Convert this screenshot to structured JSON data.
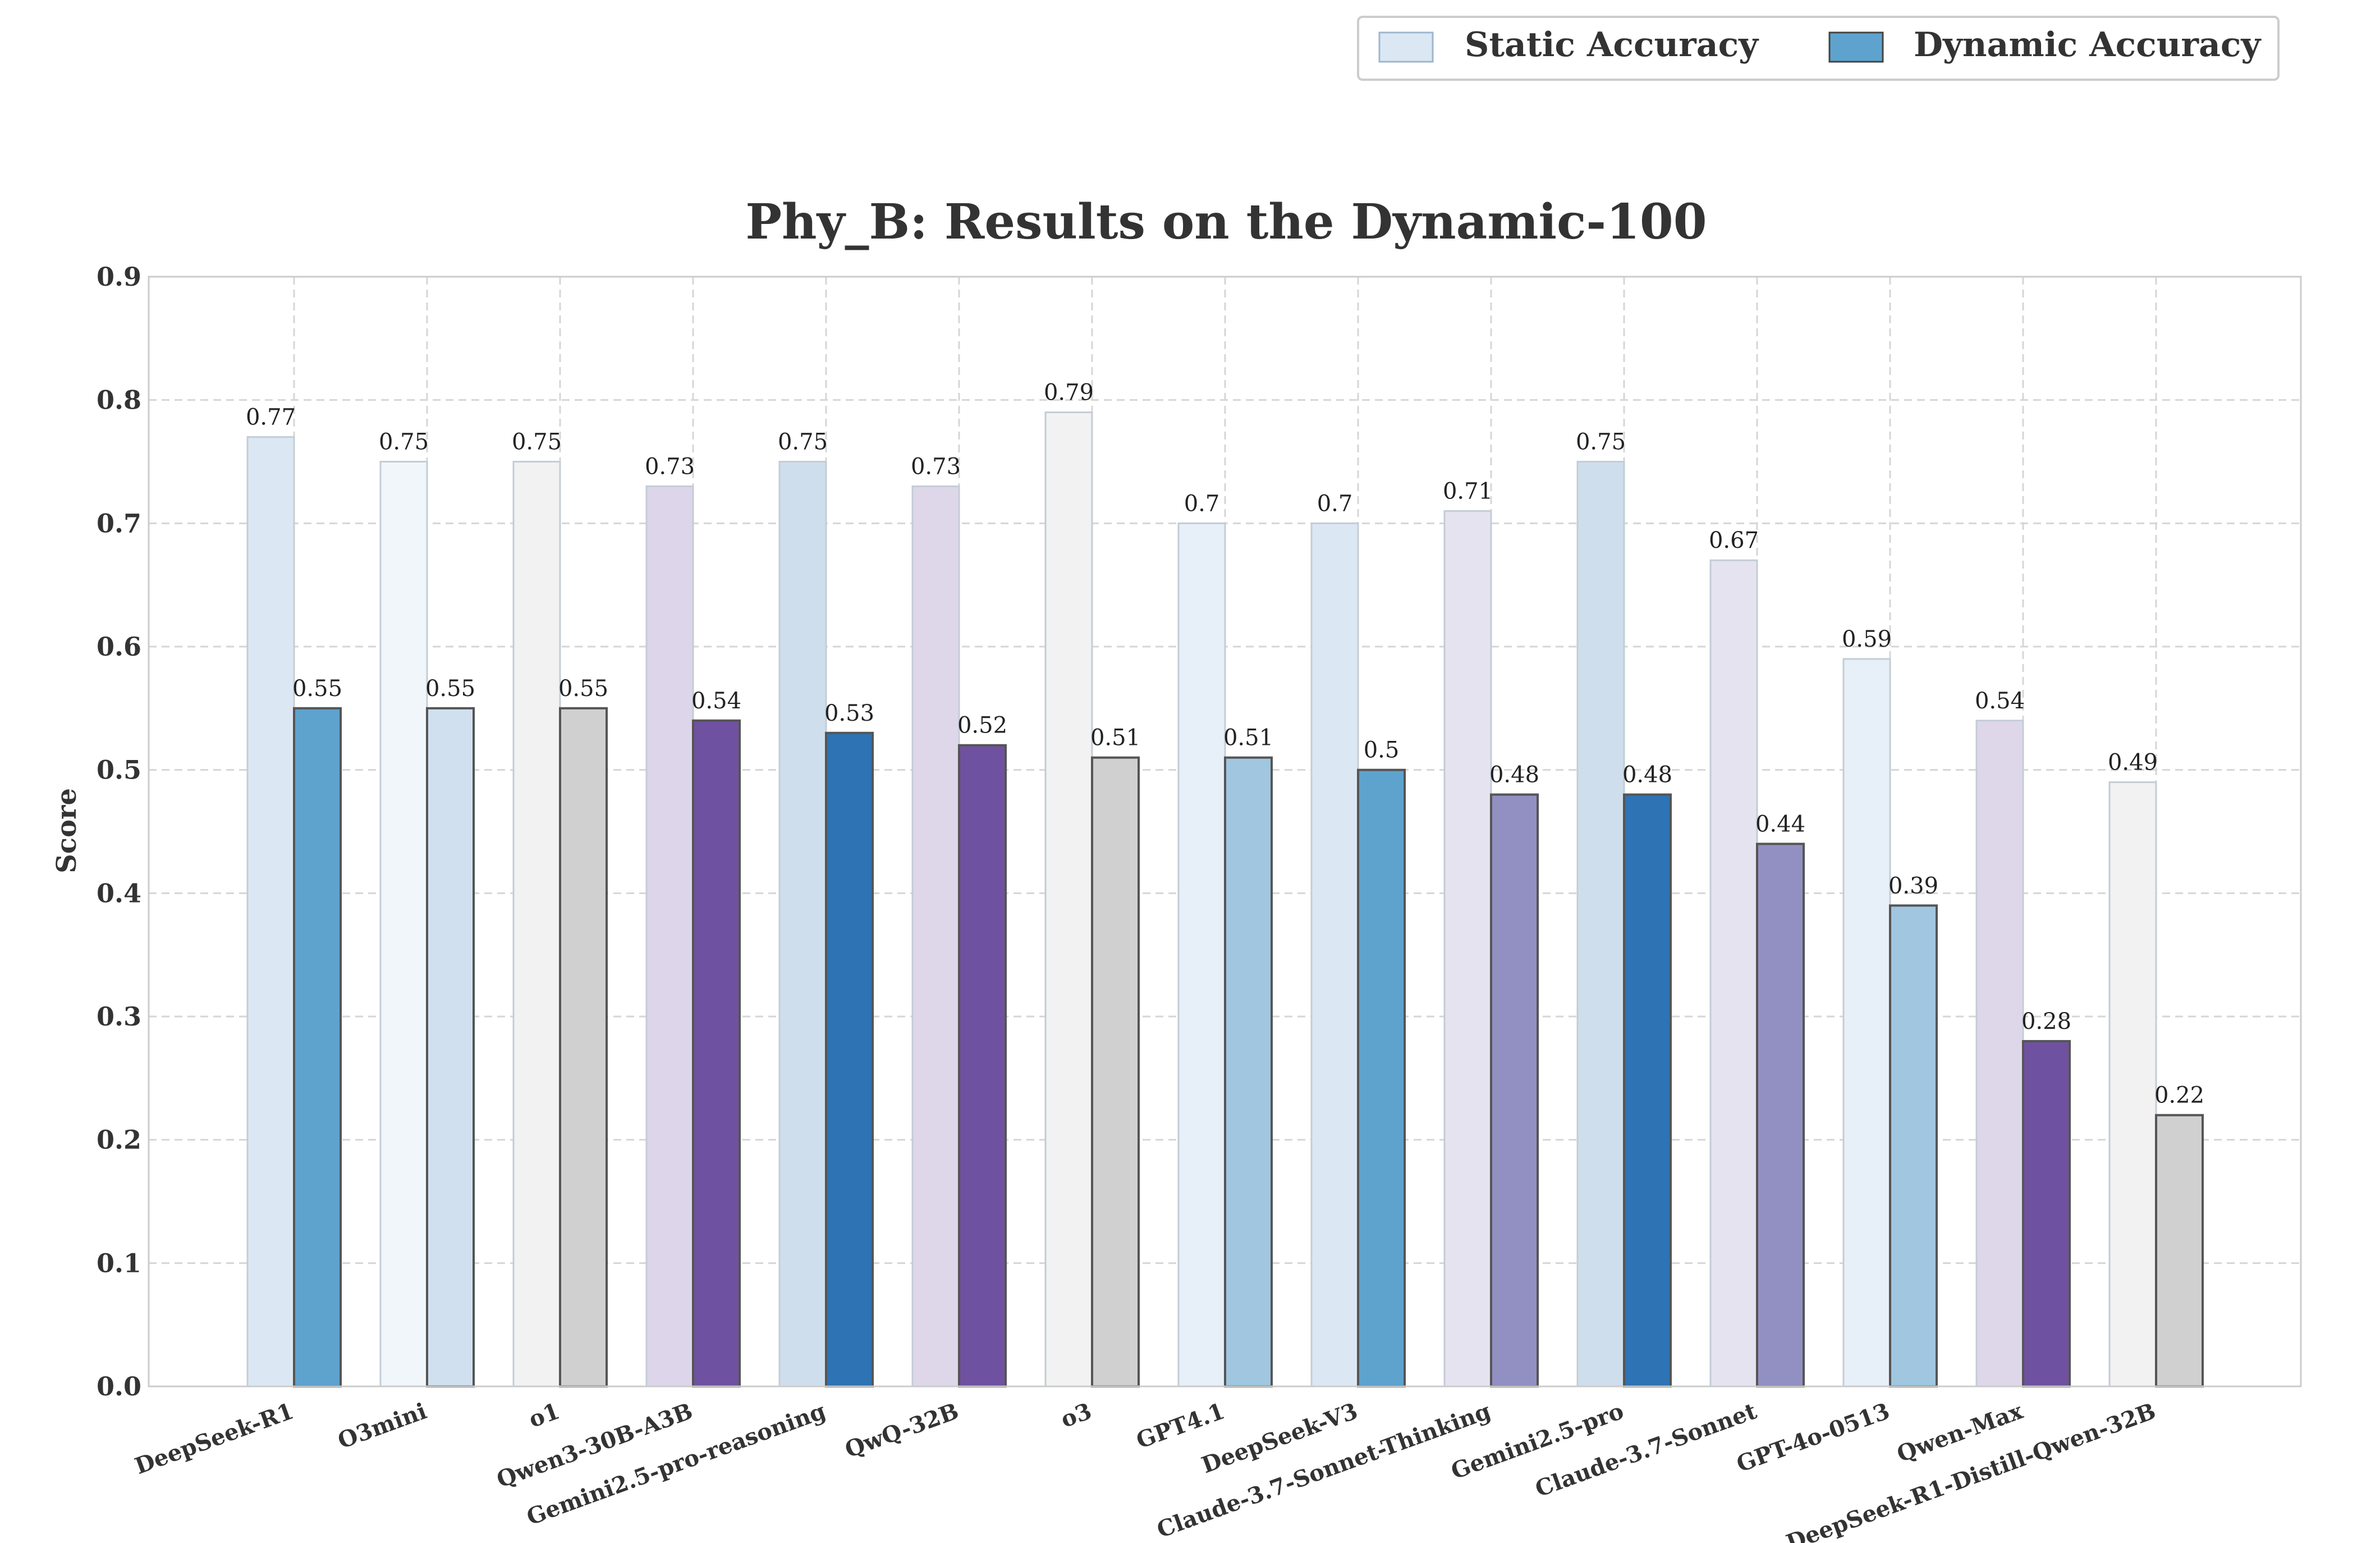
{
  "chart_data": {
    "type": "bar",
    "title": "Phy_B: Results on the Dynamic-100",
    "xlabel": "",
    "ylabel": "Score",
    "ylim": [
      0,
      0.9
    ],
    "yticks": [
      "0.0",
      "0.1",
      "0.2",
      "0.3",
      "0.4",
      "0.5",
      "0.6",
      "0.7",
      "0.8",
      "0.9"
    ],
    "grid": true,
    "legend_position": "top-right",
    "categories": [
      "DeepSeek-R1",
      "O3mini",
      "o1",
      "Qwen3-30B-A3B",
      "Gemini2.5-pro-reasoning",
      "QwQ-32B",
      "o3",
      "GPT4.1",
      "DeepSeek-V3",
      "Claude-3.7-Sonnet-Thinking",
      "Gemini2.5-pro",
      "Claude-3.7-Sonnet",
      "GPT-4o-0513",
      "Qwen-Max",
      "DeepSeek-R1-Distill-Qwen-32B"
    ],
    "series": [
      {
        "name": "Static Accuracy",
        "values": [
          0.77,
          0.75,
          0.75,
          0.73,
          0.75,
          0.73,
          0.79,
          0.7,
          0.7,
          0.71,
          0.75,
          0.67,
          0.59,
          0.54,
          0.49
        ],
        "labels": [
          "0.77",
          "0.75",
          "0.75",
          "0.73",
          "0.75",
          "0.73",
          "0.79",
          "0.7",
          "0.7",
          "0.71",
          "0.75",
          "0.67",
          "0.59",
          "0.54",
          "0.49"
        ],
        "colors": [
          "#dbe8f4",
          "#f1f6fb",
          "#f2f2f2",
          "#ddd6ea",
          "#cfdeec",
          "#ded7ea",
          "#f2f2f2",
          "#e7eff8",
          "#dbe8f4",
          "#e6e3f0",
          "#cfdeec",
          "#e6e3f0",
          "#e7eff8",
          "#ded7ea",
          "#f2f2f2"
        ],
        "legend_color": "#dbe8f4"
      },
      {
        "name": "Dynamic Accuracy",
        "values": [
          0.55,
          0.55,
          0.55,
          0.54,
          0.53,
          0.52,
          0.51,
          0.51,
          0.5,
          0.48,
          0.48,
          0.44,
          0.39,
          0.28,
          0.22
        ],
        "labels": [
          "0.55",
          "0.55",
          "0.55",
          "0.54",
          "0.53",
          "0.52",
          "0.51",
          "0.51",
          "0.5",
          "0.48",
          "0.48",
          "0.44",
          "0.39",
          "0.28",
          "0.22"
        ],
        "colors": [
          "#5ea3ce",
          "#d0e0ef",
          "#d0d0d0",
          "#6f51a1",
          "#2e73b3",
          "#6f51a1",
          "#d0d0d0",
          "#a0c6e0",
          "#5ea3ce",
          "#9290c2",
          "#2e73b3",
          "#9290c2",
          "#a0c6e0",
          "#6f51a1",
          "#d0d0d0"
        ],
        "legend_color": "#5ea3ce"
      }
    ]
  }
}
